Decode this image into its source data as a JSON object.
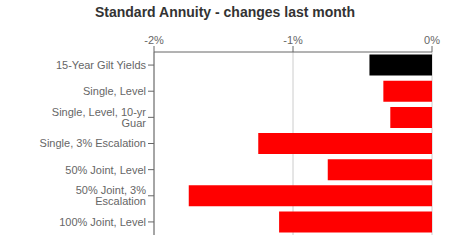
{
  "chart_data": {
    "type": "bar",
    "orientation": "horizontal",
    "title": "Standard Annuity - changes last month",
    "categories": [
      "15-Year Gilt Yields",
      "Single, Level",
      "Single, Level, 10-yr Guar",
      "Single, 3% Escalation",
      "50% Joint, Level",
      "50% Joint, 3% Escalation",
      "100% Joint, Level"
    ],
    "values": [
      -0.45,
      -0.35,
      -0.3,
      -1.25,
      -0.75,
      -1.75,
      -1.1
    ],
    "colors": [
      "#000000",
      "#ff0000",
      "#ff0000",
      "#ff0000",
      "#ff0000",
      "#ff0000",
      "#ff0000"
    ],
    "xlim": [
      -2.0,
      0.0
    ],
    "xticks": [
      {
        "value": -2.0,
        "label": "-2%"
      },
      {
        "value": -1.0,
        "label": "-1%"
      },
      {
        "value": 0.0,
        "label": "0%"
      }
    ],
    "grid": true
  }
}
